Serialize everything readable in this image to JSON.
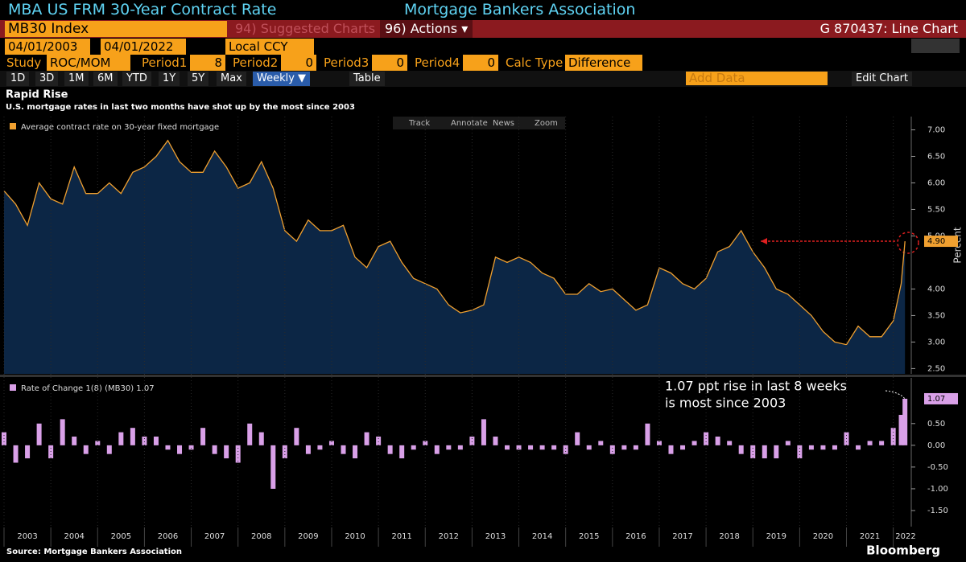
{
  "header": {
    "title": "MBA US FRM 30-Year Contract Rate",
    "source_name": "Mortgage Bankers Association"
  },
  "security": {
    "ticker": "MB30 Index",
    "suggested": "94) Suggested Charts",
    "actions": "96) Actions ▾",
    "chart_id": "G 870437: Line Chart"
  },
  "dates": {
    "start": "04/01/2003",
    "end": "04/01/2022",
    "currency": "Local CCY"
  },
  "study": {
    "label": "Study",
    "value": "ROC/MOM",
    "fields": [
      {
        "label": "Period1",
        "value": "8"
      },
      {
        "label": "Period2",
        "value": "0"
      },
      {
        "label": "Period3",
        "value": "0"
      },
      {
        "label": "Period4",
        "value": "0"
      }
    ],
    "calc_label": "Calc Type",
    "calc_value": "Difference"
  },
  "ranges": [
    "1D",
    "3D",
    "1M",
    "6M",
    "YTD",
    "1Y",
    "5Y",
    "Max"
  ],
  "frequency": "Weekly ▼",
  "table": "Table",
  "add_data": "Add Data",
  "edit_chart": "Edit Chart",
  "chart_tools": [
    "Track",
    "Annotate",
    "News",
    "Zoom"
  ],
  "footer": {
    "source": "Source: Mortgage Bankers Association",
    "brand": "Bloomberg"
  },
  "chart_data": [
    {
      "type": "area",
      "title": "Rapid Rise",
      "subtitle": "U.S. mortgage rates in last two months have shot up by the most since 2003",
      "y_label": "Percent",
      "x": [
        2003,
        2003.25,
        2003.5,
        2003.75,
        2004,
        2004.25,
        2004.5,
        2004.75,
        2005,
        2005.25,
        2005.5,
        2005.75,
        2006,
        2006.25,
        2006.5,
        2006.75,
        2007,
        2007.25,
        2007.5,
        2007.75,
        2008,
        2008.25,
        2008.5,
        2008.75,
        2009,
        2009.25,
        2009.5,
        2009.75,
        2010,
        2010.25,
        2010.5,
        2010.75,
        2011,
        2011.25,
        2011.5,
        2011.75,
        2012,
        2012.25,
        2012.5,
        2012.75,
        2013,
        2013.25,
        2013.5,
        2013.75,
        2014,
        2014.25,
        2014.5,
        2014.75,
        2015,
        2015.25,
        2015.5,
        2015.75,
        2016,
        2016.25,
        2016.5,
        2016.75,
        2017,
        2017.25,
        2017.5,
        2017.75,
        2018,
        2018.25,
        2018.5,
        2018.75,
        2019,
        2019.25,
        2019.5,
        2019.75,
        2020,
        2020.25,
        2020.5,
        2020.75,
        2021,
        2021.25,
        2021.5,
        2021.75,
        2022,
        2022.17,
        2022.25
      ],
      "series": [
        {
          "name": "Average contract rate on 30-year fixed mortgage",
          "color": "#f0a030",
          "values": [
            5.85,
            5.6,
            5.2,
            6.0,
            5.7,
            5.6,
            6.3,
            5.8,
            5.8,
            6.0,
            5.8,
            6.2,
            6.3,
            6.5,
            6.8,
            6.4,
            6.2,
            6.2,
            6.6,
            6.3,
            5.9,
            6.0,
            6.4,
            5.9,
            5.1,
            4.9,
            5.3,
            5.1,
            5.1,
            5.2,
            4.6,
            4.4,
            4.8,
            4.9,
            4.5,
            4.2,
            4.1,
            4.0,
            3.7,
            3.55,
            3.6,
            3.7,
            4.6,
            4.5,
            4.6,
            4.5,
            4.3,
            4.2,
            3.9,
            3.9,
            4.1,
            3.95,
            4.0,
            3.8,
            3.6,
            3.7,
            4.4,
            4.3,
            4.1,
            4.0,
            4.2,
            4.7,
            4.8,
            5.1,
            4.7,
            4.4,
            4.0,
            3.9,
            3.7,
            3.5,
            3.2,
            3.0,
            2.95,
            3.3,
            3.1,
            3.1,
            3.4,
            4.1,
            4.9
          ],
          "value_labels": [
            null,
            null,
            null,
            null,
            null,
            null,
            null,
            null,
            null,
            null,
            null,
            null,
            null,
            null,
            null,
            null,
            null,
            null,
            null,
            null,
            null,
            null,
            null,
            null,
            null,
            null,
            null,
            null,
            null,
            null,
            null,
            null,
            null,
            null,
            null,
            null,
            null,
            null,
            null,
            null,
            null,
            null,
            null,
            null,
            null,
            null,
            null,
            null,
            null,
            null,
            null,
            null,
            null,
            null,
            null,
            null,
            null,
            null,
            null,
            null,
            null,
            null,
            null,
            null,
            null,
            null,
            null,
            null,
            null,
            null,
            null,
            null,
            null,
            null,
            null,
            null,
            null,
            null,
            "4.90"
          ]
        }
      ],
      "xlim": [
        2003,
        2022.35
      ],
      "ylim": [
        2.4,
        7.25
      ],
      "yticks": [
        {
          "value": 7,
          "label": "7.00"
        },
        {
          "value": 6.5,
          "label": "6.50"
        },
        {
          "value": 6,
          "label": "6.00"
        },
        {
          "value": 5.5,
          "label": "5.50"
        },
        {
          "value": 5,
          "label": "5.00"
        },
        {
          "value": 4,
          "label": "4.00"
        },
        {
          "value": 3.5,
          "label": "3.50"
        },
        {
          "value": 3,
          "label": "3.00"
        },
        {
          "value": 2.5,
          "label": "2.50"
        }
      ],
      "grid": false
    },
    {
      "type": "bar",
      "annotation": [
        "1.07 ppt rise in last 8 weeks",
        "is most since 2003"
      ],
      "x": [
        2003,
        2003.25,
        2003.5,
        2003.75,
        2004,
        2004.25,
        2004.5,
        2004.75,
        2005,
        2005.25,
        2005.5,
        2005.75,
        2006,
        2006.25,
        2006.5,
        2006.75,
        2007,
        2007.25,
        2007.5,
        2007.75,
        2008,
        2008.25,
        2008.5,
        2008.75,
        2009,
        2009.25,
        2009.5,
        2009.75,
        2010,
        2010.25,
        2010.5,
        2010.75,
        2011,
        2011.25,
        2011.5,
        2011.75,
        2012,
        2012.25,
        2012.5,
        2012.75,
        2013,
        2013.25,
        2013.5,
        2013.75,
        2014,
        2014.25,
        2014.5,
        2014.75,
        2015,
        2015.25,
        2015.5,
        2015.75,
        2016,
        2016.25,
        2016.5,
        2016.75,
        2017,
        2017.25,
        2017.5,
        2017.75,
        2018,
        2018.25,
        2018.5,
        2018.75,
        2019,
        2019.25,
        2019.5,
        2019.75,
        2020,
        2020.25,
        2020.5,
        2020.75,
        2021,
        2021.25,
        2021.5,
        2021.75,
        2022,
        2022.17,
        2022.25
      ],
      "series": [
        {
          "name": "Rate of Change 1(8) (MB30) 1.07",
          "color": "#d9a0e8",
          "values": [
            0.3,
            -0.4,
            -0.3,
            0.5,
            -0.3,
            0.6,
            0.2,
            -0.2,
            0.1,
            -0.2,
            0.3,
            0.4,
            0.2,
            0.2,
            -0.1,
            -0.2,
            -0.1,
            0.4,
            -0.2,
            -0.3,
            -0.4,
            0.5,
            0.3,
            -1.0,
            -0.3,
            0.4,
            -0.2,
            -0.1,
            0.1,
            -0.2,
            -0.3,
            0.3,
            0.2,
            -0.2,
            -0.3,
            -0.1,
            0.1,
            -0.2,
            -0.1,
            -0.1,
            0.2,
            0.6,
            0.2,
            -0.1,
            -0.1,
            -0.1,
            -0.1,
            -0.1,
            -0.2,
            0.3,
            -0.1,
            0.1,
            -0.2,
            -0.1,
            -0.1,
            0.5,
            0.1,
            -0.2,
            -0.1,
            0.1,
            0.3,
            0.2,
            0.1,
            -0.2,
            -0.3,
            -0.3,
            -0.3,
            0.1,
            -0.3,
            -0.1,
            -0.1,
            -0.1,
            0.3,
            -0.1,
            0.1,
            0.1,
            0.4,
            0.7,
            1.07
          ],
          "value_labels": [
            null,
            null,
            null,
            null,
            null,
            null,
            null,
            null,
            null,
            null,
            null,
            null,
            null,
            null,
            null,
            null,
            null,
            null,
            null,
            null,
            null,
            null,
            null,
            null,
            null,
            null,
            null,
            null,
            null,
            null,
            null,
            null,
            null,
            null,
            null,
            null,
            null,
            null,
            null,
            null,
            null,
            null,
            null,
            null,
            null,
            null,
            null,
            null,
            null,
            null,
            null,
            null,
            null,
            null,
            null,
            null,
            null,
            null,
            null,
            null,
            null,
            null,
            null,
            null,
            null,
            null,
            null,
            null,
            null,
            null,
            null,
            null,
            null,
            null,
            null,
            null,
            null,
            null,
            "1.07"
          ]
        }
      ],
      "xlim": [
        2003,
        2022.35
      ],
      "ylim": [
        -1.87,
        1.55
      ],
      "yticks": [
        {
          "value": 0.5,
          "label": "0.50"
        },
        {
          "value": 0,
          "label": "0.00"
        },
        {
          "value": -0.5,
          "label": "-0.50"
        },
        {
          "value": -1,
          "label": "-1.00"
        },
        {
          "value": -1.5,
          "label": "-1.50"
        }
      ],
      "xticks": [
        2003,
        2004,
        2005,
        2006,
        2007,
        2008,
        2009,
        2010,
        2011,
        2012,
        2013,
        2014,
        2015,
        2016,
        2017,
        2018,
        2019,
        2020,
        2021,
        2022
      ],
      "grid": false
    }
  ]
}
